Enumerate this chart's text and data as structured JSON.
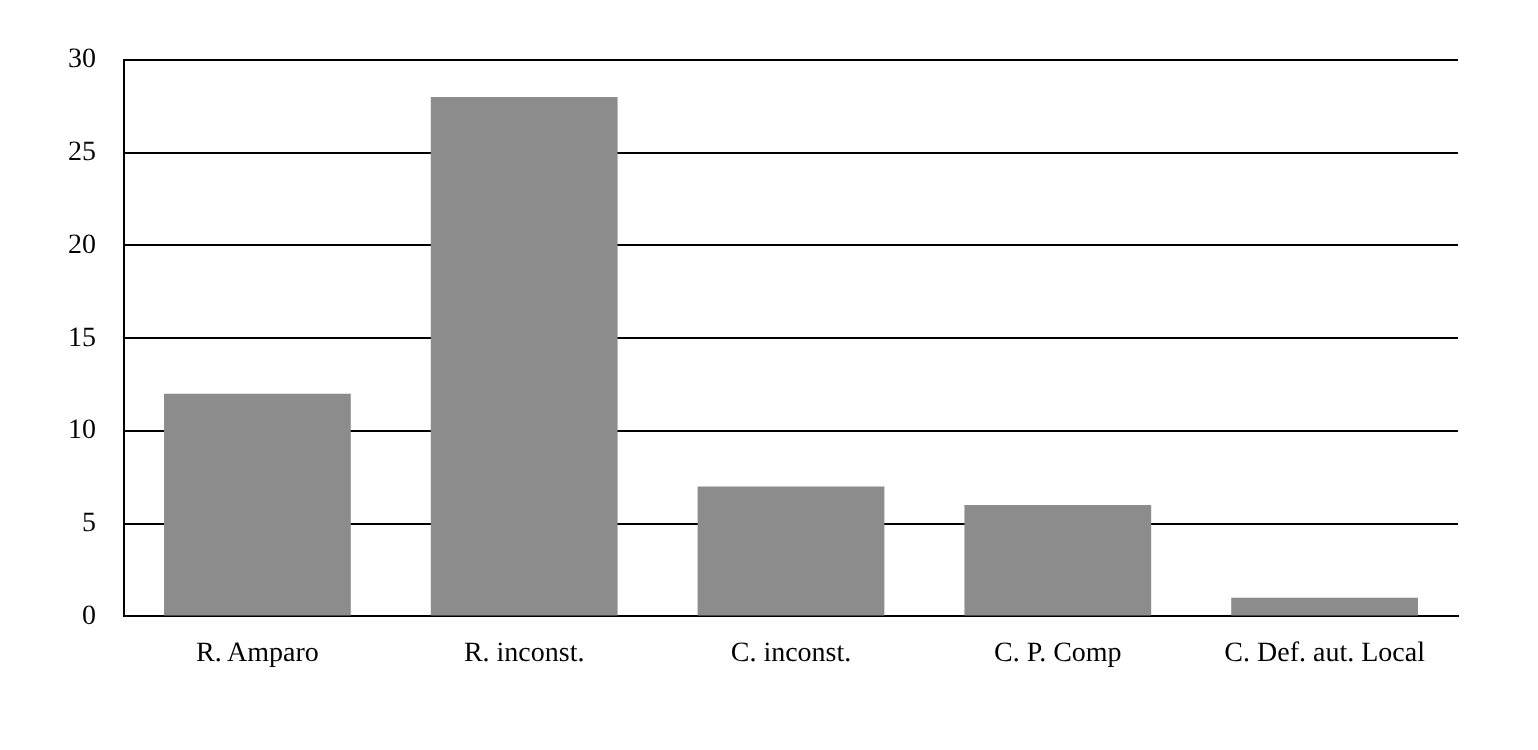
{
  "chart_data": {
    "type": "bar",
    "categories": [
      "R. Amparo",
      "R. inconst.",
      "C. inconst.",
      "C. P. Comp",
      "C. Def. aut. Local"
    ],
    "values": [
      12,
      28,
      7,
      6,
      1
    ],
    "color": "#8c8c8c",
    "ylim": [
      0,
      30
    ],
    "yticks": [
      0,
      5,
      10,
      15,
      20,
      25,
      30
    ],
    "grid": "y"
  }
}
